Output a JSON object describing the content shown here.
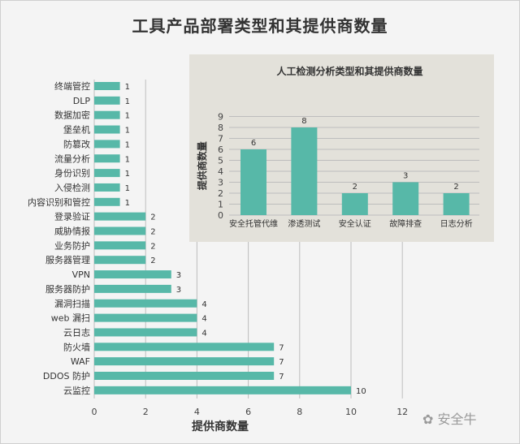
{
  "title": "工具产品部署类型和其提供商数量",
  "watermark": "安全牛",
  "colors": {
    "bar": "#57b8a8",
    "grid": "#bdbdbd",
    "inset_bg": "#e3e1da"
  },
  "chart_data": [
    {
      "type": "bar",
      "orientation": "horizontal",
      "title": "工具产品部署类型和其提供商数量",
      "xlabel": "提供商数量",
      "ylabel": "",
      "xlim": [
        0,
        12
      ],
      "xticks": [
        0,
        2,
        4,
        6,
        8,
        10,
        12
      ],
      "grid": true,
      "categories": [
        "终端管控",
        "DLP",
        "数据加密",
        "堡垒机",
        "防篡改",
        "流量分析",
        "身份识别",
        "入侵检测",
        "内容识别和管控",
        "登录验证",
        "威胁情报",
        "业务防护",
        "服务器管理",
        "VPN",
        "服务器防护",
        "漏洞扫描",
        "web 漏扫",
        "云日志",
        "防火墙",
        "WAF",
        "DDOS 防护",
        "云监控"
      ],
      "values": [
        1,
        1,
        1,
        1,
        1,
        1,
        1,
        1,
        1,
        2,
        2,
        2,
        2,
        3,
        3,
        4,
        4,
        4,
        7,
        7,
        7,
        10
      ]
    },
    {
      "type": "bar",
      "orientation": "vertical",
      "title": "人工检测分析类型和其提供商数量",
      "xlabel": "",
      "ylabel": "提供商数量",
      "ylim": [
        0,
        9
      ],
      "yticks": [
        0,
        1,
        2,
        3,
        4,
        5,
        6,
        7,
        8,
        9
      ],
      "grid": true,
      "categories": [
        "安全托管代维",
        "渗透测试",
        "安全认证",
        "故障排查",
        "日志分析"
      ],
      "values": [
        6,
        8,
        2,
        3,
        2
      ]
    }
  ]
}
